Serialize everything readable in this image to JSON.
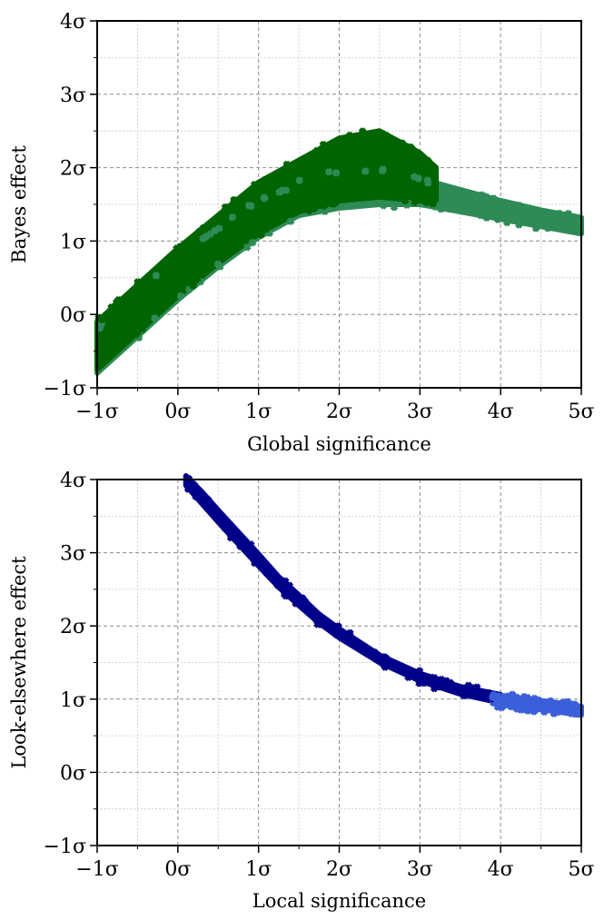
{
  "chart_data": [
    {
      "type": "scatter",
      "xlabel": "Global significance",
      "ylabel": "Bayes effect",
      "xlim": [
        -1,
        5
      ],
      "ylim": [
        -1,
        4
      ],
      "x_ticks": [
        -1,
        0,
        1,
        2,
        3,
        4,
        5
      ],
      "y_ticks": [
        -1,
        0,
        1,
        2,
        3,
        4
      ],
      "x_tick_labels": [
        "−1σ",
        "0σ",
        "1σ",
        "2σ",
        "3σ",
        "4σ",
        "5σ"
      ],
      "y_tick_labels": [
        "−1σ",
        "0σ",
        "1σ",
        "2σ",
        "3σ",
        "4σ"
      ],
      "grid": true,
      "marker": "plus-filled",
      "series": [
        {
          "color": "#2e8b57",
          "x": [
            -1.0,
            -0.5,
            0.0,
            0.5,
            1.0,
            1.5,
            2.0,
            2.5,
            3.0,
            3.5,
            4.0,
            4.5,
            5.0
          ],
          "y": [
            -0.55,
            -0.05,
            0.45,
            0.9,
            1.3,
            1.55,
            1.65,
            1.7,
            1.65,
            1.5,
            1.38,
            1.28,
            1.2
          ],
          "band_low": [
            -0.8,
            -0.3,
            0.2,
            0.65,
            1.05,
            1.35,
            1.45,
            1.5,
            1.5,
            1.4,
            1.3,
            1.2,
            1.1
          ],
          "band_high": [
            -0.2,
            0.3,
            0.75,
            1.15,
            1.55,
            1.8,
            1.95,
            1.95,
            1.85,
            1.7,
            1.55,
            1.42,
            1.32
          ]
        },
        {
          "color": "#006400",
          "x": [
            -1.0,
            -0.5,
            0.0,
            0.5,
            1.0,
            1.5,
            2.0,
            2.5,
            3.0,
            3.2
          ],
          "y": [
            -0.45,
            0.05,
            0.55,
            1.0,
            1.45,
            1.75,
            1.95,
            2.05,
            1.85,
            1.75
          ],
          "band_low": [
            -0.75,
            -0.25,
            0.25,
            0.7,
            1.1,
            1.4,
            1.55,
            1.6,
            1.55,
            1.5
          ],
          "band_high": [
            -0.1,
            0.4,
            0.9,
            1.35,
            1.8,
            2.1,
            2.4,
            2.5,
            2.2,
            2.0
          ]
        }
      ]
    },
    {
      "type": "scatter",
      "xlabel": "Local significance",
      "ylabel": "Look-elsewhere effect",
      "xlim": [
        -1,
        5
      ],
      "ylim": [
        -1,
        4
      ],
      "x_ticks": [
        -1,
        0,
        1,
        2,
        3,
        4,
        5
      ],
      "y_ticks": [
        -1,
        0,
        1,
        2,
        3,
        4
      ],
      "x_tick_labels": [
        "−1σ",
        "0σ",
        "1σ",
        "2σ",
        "3σ",
        "4σ",
        "5σ"
      ],
      "y_tick_labels": [
        "−1σ",
        "0σ",
        "1σ",
        "2σ",
        "3σ",
        "4σ"
      ],
      "grid": true,
      "marker": "plus-filled",
      "series": [
        {
          "color": "#00008b",
          "x": [
            0.1,
            0.3,
            0.5,
            0.75,
            1.0,
            1.25,
            1.5,
            1.75,
            2.0,
            2.5,
            3.0,
            3.5,
            4.0
          ],
          "y": [
            4.0,
            3.75,
            3.5,
            3.2,
            2.9,
            2.6,
            2.35,
            2.1,
            1.9,
            1.55,
            1.3,
            1.12,
            1.0
          ],
          "band_low": [
            3.92,
            3.67,
            3.42,
            3.12,
            2.82,
            2.53,
            2.28,
            2.04,
            1.84,
            1.5,
            1.25,
            1.07,
            0.95
          ],
          "band_high": [
            4.05,
            3.83,
            3.58,
            3.28,
            2.98,
            2.67,
            2.42,
            2.16,
            1.96,
            1.6,
            1.35,
            1.17,
            1.06
          ]
        },
        {
          "color": "#3a5fd9",
          "x": [
            3.9,
            4.25,
            4.5,
            4.75,
            5.0
          ],
          "y": [
            1.0,
            0.95,
            0.92,
            0.88,
            0.84
          ],
          "band_low": [
            0.94,
            0.89,
            0.86,
            0.82,
            0.78
          ],
          "band_high": [
            1.06,
            1.01,
            0.98,
            0.94,
            0.9
          ]
        }
      ]
    }
  ]
}
